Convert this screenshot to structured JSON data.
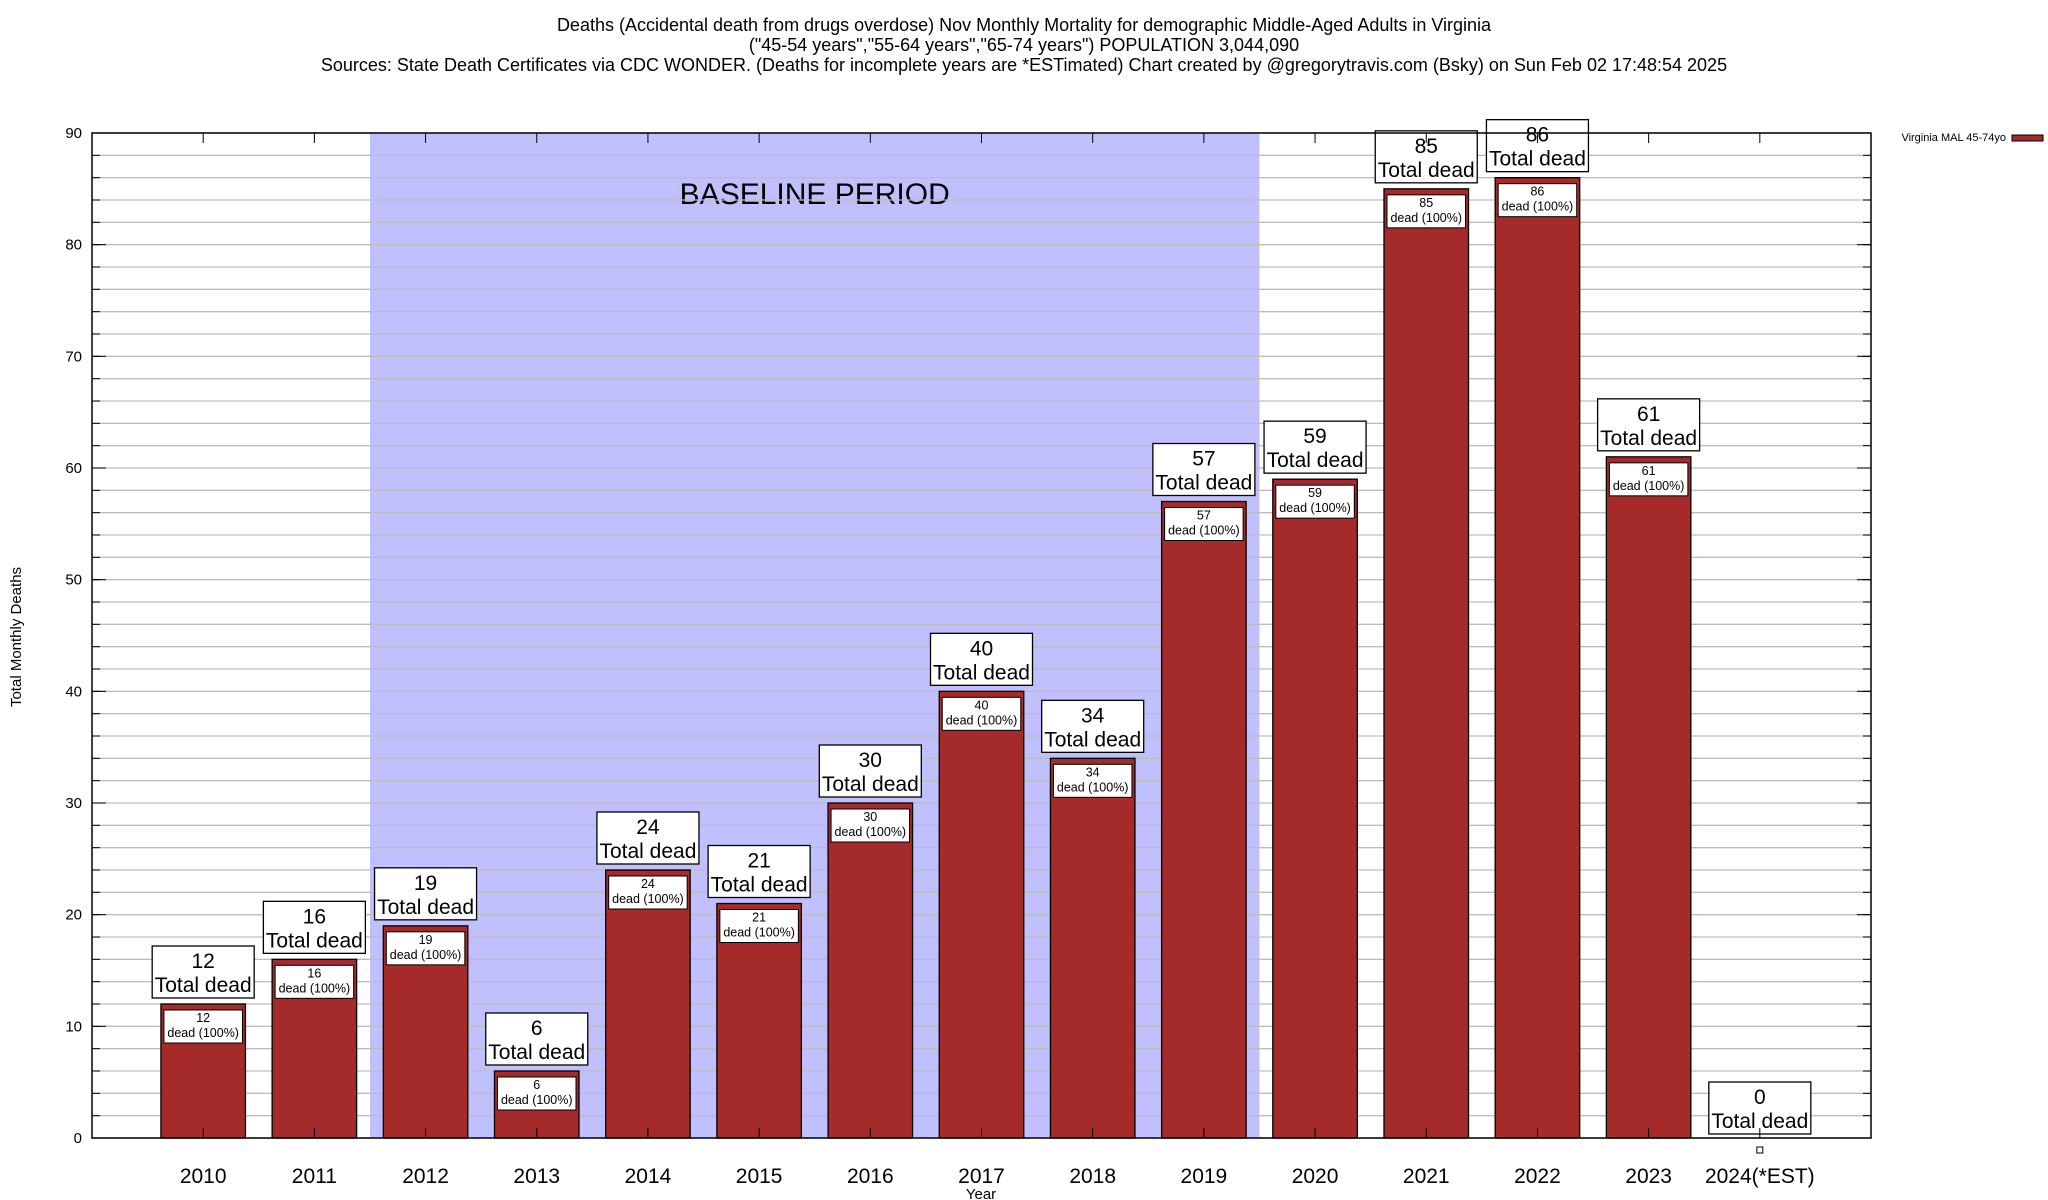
{
  "chart_data": {
    "type": "bar",
    "title_lines": [
      "Deaths (Accidental death from drugs overdose) Nov Monthly Mortality for demographic Middle-Aged Adults in Virginia",
      "(\"45-54 years\",\"55-64 years\",\"65-74 years\") POPULATION 3,044,090",
      "Sources: State Death Certificates via CDC WONDER. (Deaths for incomplete years are *ESTimated)                Chart created by @gregorytravis.com (Bsky) on Sun Feb 02 17:48:54 2025"
    ],
    "xlabel": "Year",
    "ylabel": "Total Monthly Deaths",
    "ylim": [
      0,
      90
    ],
    "yticks": [
      0,
      10,
      20,
      30,
      40,
      50,
      60,
      70,
      80,
      90
    ],
    "minor_grid_step": 2,
    "grid": true,
    "categories": [
      "2010",
      "2011",
      "2012",
      "2013",
      "2014",
      "2015",
      "2016",
      "2017",
      "2018",
      "2019",
      "2020",
      "2021",
      "2022",
      "2023",
      "2024(*EST)"
    ],
    "series": [
      {
        "name": "Virginia MAL 45-74yo",
        "color": "#A52A2A",
        "values": [
          12,
          16,
          19,
          6,
          24,
          21,
          30,
          40,
          34,
          57,
          59,
          85,
          86,
          61,
          0
        ]
      }
    ],
    "total_label": "Total dead",
    "inner_label": "dead (100%)",
    "shaded_region": {
      "label": "BASELINE PERIOD",
      "from": "2012",
      "to": "2019",
      "color": "#C0C0FF"
    },
    "legend_position": "top-right"
  }
}
